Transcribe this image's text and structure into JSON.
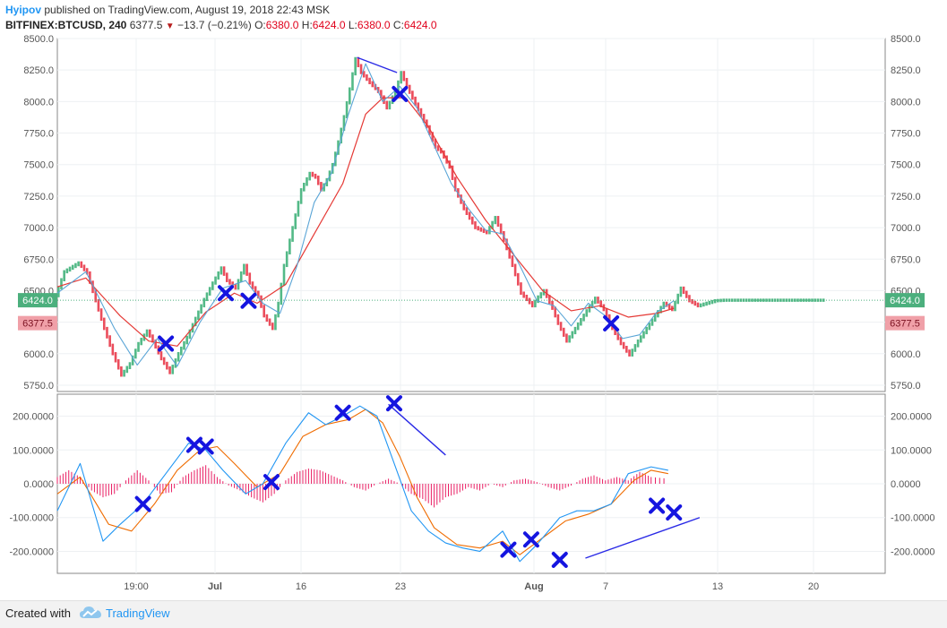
{
  "header": {
    "user": "Hyipov",
    "published": "published on TradingView.com, August 19, 2018 22:43 MSK",
    "symbol": "BITFINEX:BTCUSD, 240",
    "last": "6377.5",
    "change": "−13.7 (−0.21%)",
    "o_label": "O:",
    "o_value": "6380.0",
    "h_label": "H:",
    "h_value": "6424.0",
    "l_label": "L:",
    "l_value": "6380.0",
    "c_label": "C:",
    "c_value": "6424.0"
  },
  "footer": {
    "created_with": "Created with",
    "brand": "TradingView"
  },
  "colors": {
    "up": "#53b987",
    "down": "#eb4d5c",
    "fast_ma": "#5aa5d6",
    "slow_ma": "#e53935",
    "macd": "#2196f3",
    "signal": "#ef6c00",
    "hist": "#e91e63",
    "marker": "#1515e0",
    "trend": "#2a2ae6",
    "last_price_tag": "#4caf7d",
    "prev_price_tag": "#f0a0a8"
  },
  "chart_data": [
    {
      "type": "renko-line",
      "title": "",
      "ylim": [
        5700,
        8500
      ],
      "y_ticks": [
        "5750.0",
        "6000.0",
        "6250.0",
        "6500.0",
        "6750.0",
        "7000.0",
        "7250.0",
        "7500.0",
        "7750.0",
        "8000.0",
        "8250.0",
        "8500.0"
      ],
      "x_ticks": [
        "19:00",
        "Jul",
        "16",
        "23",
        "Aug",
        "7",
        "13",
        "20"
      ],
      "price_tags": {
        "last": "6424.0",
        "prev": "6377.5"
      },
      "renko_path": {
        "x": [
          0,
          3,
          8,
          11,
          14,
          17,
          20,
          23,
          26,
          29,
          32,
          34,
          37,
          40,
          43,
          46,
          49,
          52,
          55,
          58,
          60,
          63,
          66,
          68,
          71,
          73,
          76,
          78,
          80,
          83,
          86,
          89,
          91,
          93,
          95,
          97,
          99,
          101,
          103,
          105,
          107,
          110,
          113,
          116,
          119,
          121,
          123,
          126,
          130,
          133,
          135,
          138,
          140,
          143,
          147,
          151,
          154,
          157,
          160,
          163,
          167,
          169,
          171,
          174,
          176,
          179,
          182,
          186,
          189,
          192,
          195,
          198,
          201,
          204,
          207,
          210,
          213,
          216,
          219,
          222,
          225,
          228,
          231,
          234,
          237,
          240,
          243,
          246,
          249,
          252,
          256,
          259,
          262,
          266,
          269
        ],
        "y": [
          6460,
          6650,
          6720,
          6640,
          6420,
          6200,
          6000,
          5830,
          5920,
          6080,
          6180,
          6100,
          5960,
          5850,
          6000,
          6130,
          6280,
          6430,
          6560,
          6680,
          6580,
          6520,
          6700,
          6560,
          6450,
          6300,
          6200,
          6400,
          6700,
          7000,
          7300,
          7430,
          7400,
          7300,
          7380,
          7500,
          7680,
          7880,
          8100,
          8340,
          8230,
          8150,
          8080,
          7950,
          8080,
          8230,
          8120,
          7980,
          7800,
          7640,
          7600,
          7480,
          7300,
          7150,
          7000,
          6960,
          7080,
          6900,
          6700,
          6480,
          6380,
          6450,
          6500,
          6360,
          6240,
          6100,
          6200,
          6340,
          6440,
          6350,
          6200,
          6080,
          5990,
          6100,
          6200,
          6300,
          6400,
          6350,
          6520,
          6420,
          6380,
          6400,
          6420,
          6424,
          6424,
          6424,
          6424,
          6424,
          6424,
          6424,
          6424,
          6424,
          6424,
          6424,
          6424
        ]
      },
      "fast_ma": {
        "x": [
          0,
          10,
          20,
          28,
          35,
          42,
          50,
          58,
          66,
          72,
          78,
          84,
          90,
          96,
          102,
          108,
          114,
          120,
          126,
          132,
          138,
          144,
          150,
          156,
          162,
          168,
          174,
          180,
          186,
          192,
          198,
          204,
          210,
          216
        ],
        "y": [
          6480,
          6650,
          6200,
          5910,
          6120,
          5900,
          6250,
          6520,
          6580,
          6400,
          6320,
          6700,
          7200,
          7430,
          7900,
          8300,
          8000,
          8120,
          7950,
          7650,
          7350,
          7150,
          6980,
          6950,
          6700,
          6420,
          6380,
          6220,
          6400,
          6300,
          6120,
          6150,
          6330,
          6420
        ]
      },
      "slow_ma": {
        "x": [
          0,
          10,
          22,
          32,
          42,
          52,
          62,
          70,
          80,
          90,
          100,
          108,
          114,
          122,
          130,
          140,
          150,
          160,
          170,
          180,
          190,
          200,
          210,
          216
        ],
        "y": [
          6530,
          6600,
          6300,
          6100,
          6060,
          6330,
          6480,
          6400,
          6550,
          6950,
          7350,
          7900,
          8030,
          8030,
          7800,
          7400,
          7060,
          6780,
          6500,
          6340,
          6380,
          6290,
          6320,
          6360
        ]
      },
      "trendline": {
        "x": [
          105,
          119
        ],
        "y": [
          8350,
          8230
        ]
      },
      "markers": [
        {
          "x": 38,
          "y": 6080
        },
        {
          "x": 59,
          "y": 6480
        },
        {
          "x": 67,
          "y": 6420
        },
        {
          "x": 120,
          "y": 8060
        },
        {
          "x": 194,
          "y": 6240
        }
      ]
    },
    {
      "type": "macd",
      "title": "",
      "ylim": [
        -265,
        265
      ],
      "y_ticks": [
        "-200.0000",
        "-100.0000",
        "0.0000",
        "100.0000",
        "200.0000"
      ],
      "macd": {
        "x": [
          0,
          8,
          16,
          22,
          30,
          38,
          46,
          52,
          58,
          66,
          72,
          80,
          88,
          94,
          100,
          106,
          112,
          118,
          124,
          130,
          136,
          142,
          148,
          156,
          162,
          168,
          176,
          182,
          188,
          194,
          200,
          208,
          214
        ],
        "y": [
          -80,
          60,
          -170,
          -120,
          -60,
          30,
          120,
          100,
          40,
          -30,
          0,
          120,
          210,
          175,
          200,
          230,
          200,
          60,
          -80,
          -140,
          -175,
          -190,
          -200,
          -140,
          -230,
          -180,
          -100,
          -80,
          -80,
          -60,
          30,
          50,
          40
        ]
      },
      "signal": {
        "x": [
          0,
          8,
          18,
          26,
          34,
          42,
          50,
          56,
          62,
          70,
          78,
          86,
          94,
          102,
          108,
          114,
          120,
          126,
          132,
          140,
          148,
          156,
          162,
          170,
          178,
          186,
          194,
          202,
          208,
          214
        ],
        "y": [
          -30,
          20,
          -120,
          -140,
          -60,
          40,
          100,
          110,
          60,
          -10,
          30,
          140,
          175,
          190,
          220,
          180,
          80,
          -40,
          -130,
          -180,
          -190,
          -170,
          -210,
          -160,
          -110,
          -90,
          -60,
          10,
          40,
          30
        ]
      },
      "histogram": {
        "x": [
          0,
          4,
          8,
          12,
          16,
          20,
          24,
          28,
          32,
          36,
          40,
          44,
          48,
          52,
          56,
          60,
          64,
          68,
          72,
          76,
          80,
          84,
          88,
          92,
          96,
          100,
          104,
          108,
          112,
          116,
          120,
          124,
          128,
          132,
          136,
          140,
          144,
          148,
          152,
          156,
          160,
          164,
          168,
          172,
          176,
          180,
          184,
          188,
          192,
          196,
          200,
          204,
          208,
          214
        ],
        "y": [
          20,
          40,
          20,
          -20,
          -40,
          -30,
          10,
          40,
          10,
          -30,
          -25,
          20,
          40,
          55,
          20,
          -5,
          -20,
          -40,
          -55,
          -30,
          10,
          35,
          45,
          40,
          25,
          10,
          -10,
          -20,
          0,
          15,
          0,
          -30,
          -45,
          -70,
          -40,
          -30,
          -10,
          -20,
          0,
          -10,
          10,
          15,
          5,
          -10,
          -20,
          -5,
          15,
          25,
          10,
          20,
          10,
          35,
          20,
          15
        ]
      },
      "trendlines": [
        {
          "x": [
            116,
            136
          ],
          "y": [
            235,
            85
          ]
        },
        {
          "x": [
            185,
            225
          ],
          "y": [
            -220,
            -100
          ]
        }
      ],
      "markers": [
        {
          "x": 30,
          "y": -60
        },
        {
          "x": 48,
          "y": 115
        },
        {
          "x": 52,
          "y": 110
        },
        {
          "x": 75,
          "y": 5
        },
        {
          "x": 100,
          "y": 210
        },
        {
          "x": 118,
          "y": 238
        },
        {
          "x": 158,
          "y": -195
        },
        {
          "x": 166,
          "y": -165
        },
        {
          "x": 176,
          "y": -225
        },
        {
          "x": 210,
          "y": -65
        },
        {
          "x": 216,
          "y": -85
        }
      ]
    }
  ]
}
